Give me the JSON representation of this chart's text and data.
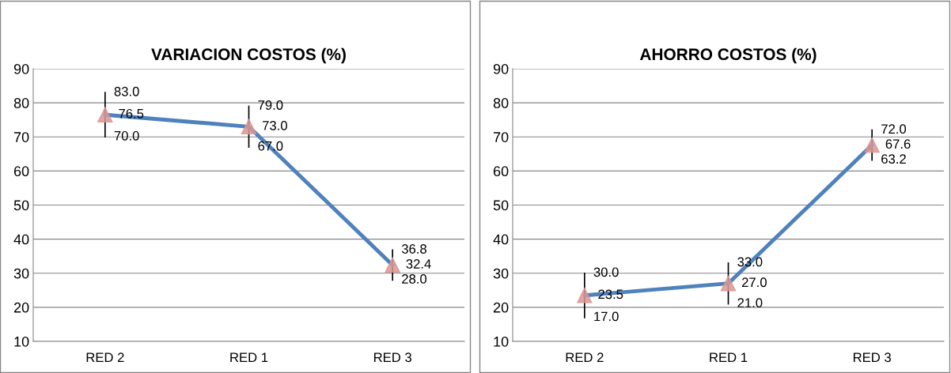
{
  "chart_data": [
    {
      "type": "line",
      "title": "VARIACION COSTOS (%)",
      "categories": [
        "RED 2",
        "RED 1",
        "RED 3"
      ],
      "series": [
        {
          "color": "#4f81bd",
          "colors": [
            "#d99694",
            "#d99694",
            "#d99694"
          ],
          "values": [
            76.5,
            73.0,
            32.4
          ],
          "errors": [
            [
              70.0,
              83.0
            ],
            [
              67.0,
              79.0
            ],
            [
              28.0,
              36.8
            ]
          ],
          "value_labels": [
            "76.5",
            "73.0",
            "32.4"
          ]
        }
      ],
      "annotations": [
        {
          "text": "83.0",
          "x": "RED 2",
          "y": 83.0
        },
        {
          "text": "70.0",
          "x": "RED 2",
          "y": 70.0
        },
        {
          "text": "79.0",
          "x": "RED 1",
          "y": 79.0
        },
        {
          "text": "67.0",
          "x": "RED 1",
          "y": 67.0
        },
        {
          "text": "36.8",
          "x": "RED 3",
          "y": 36.8
        },
        {
          "text": "28.0",
          "x": "RED 3",
          "y": 28.0
        }
      ],
      "ylim": [
        10,
        90
      ],
      "yticks": [
        10,
        20,
        30,
        40,
        50,
        60,
        70,
        80,
        90
      ],
      "grid": "y",
      "marker": "triangle",
      "line_style": "solid"
    },
    {
      "type": "line",
      "title": "AHORRO COSTOS (%)",
      "categories": [
        "RED 2",
        "RED 1",
        "RED 3"
      ],
      "series": [
        {
          "color": "#4f81bd",
          "colors": [
            "#d99694",
            "#d99694",
            "#d99694"
          ],
          "values": [
            23.5,
            27.0,
            67.6
          ],
          "errors": [
            [
              17.0,
              30.0
            ],
            [
              21.0,
              33.0
            ],
            [
              63.2,
              72.0
            ]
          ],
          "value_labels": [
            "23.5",
            "27.0",
            "67.6"
          ]
        }
      ],
      "annotations": [
        {
          "text": "30.0",
          "x": "RED 2",
          "y": 30.0
        },
        {
          "text": "17.0",
          "x": "RED 2",
          "y": 17.0
        },
        {
          "text": "33.0",
          "x": "RED 1",
          "y": 33.0
        },
        {
          "text": "21.0",
          "x": "RED 1",
          "y": 21.0
        },
        {
          "text": "72.0",
          "x": "RED 3",
          "y": 72.0
        },
        {
          "text": "63.2",
          "x": "RED 3",
          "y": 63.2
        }
      ],
      "ylim": [
        10,
        90
      ],
      "yticks": [
        10,
        20,
        30,
        40,
        50,
        60,
        70,
        80,
        90
      ],
      "grid": "y",
      "marker": "triangle",
      "line_style": "solid"
    }
  ]
}
